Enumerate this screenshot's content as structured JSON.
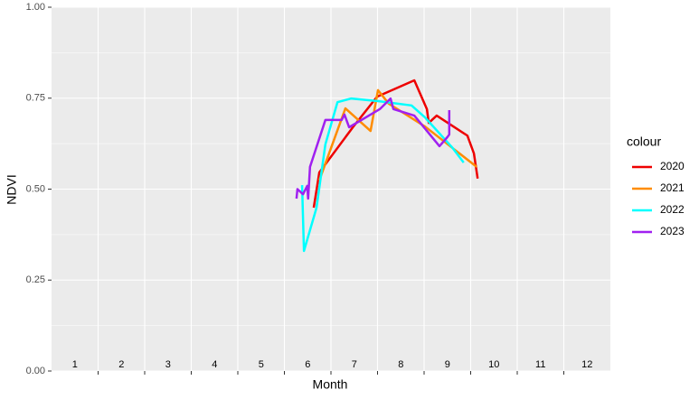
{
  "chart_data": {
    "type": "line",
    "x_label": "Month",
    "y_label": "NDVI",
    "xlim": [
      0.5,
      12.5
    ],
    "ylim": [
      0,
      1
    ],
    "xticks": [
      1,
      2,
      3,
      4,
      5,
      6,
      7,
      8,
      9,
      10,
      11,
      12
    ],
    "xgrid": [
      1.5,
      2.5,
      3.5,
      4.5,
      5.5,
      6.5,
      7.5,
      8.5,
      9.5,
      10.5,
      11.5
    ],
    "yticks": [
      {
        "value": 0,
        "label": "0.00"
      },
      {
        "value": 0.25,
        "label": "0.25"
      },
      {
        "value": 0.5,
        "label": "0.50"
      },
      {
        "value": 0.75,
        "label": "0.75"
      },
      {
        "value": 1,
        "label": "1.00"
      }
    ],
    "grid": true,
    "legend_title": "colour",
    "legend_position": "right",
    "series": [
      {
        "name": "2020",
        "color": "#ee0000",
        "x": [
          6.13,
          6.25,
          6.97,
          7.49,
          8.29,
          8.56,
          8.6,
          8.77,
          9.43,
          9.57,
          9.65
        ],
        "values": [
          0.449,
          0.546,
          0.67,
          0.754,
          0.799,
          0.72,
          0.682,
          0.702,
          0.647,
          0.598,
          0.529
        ]
      },
      {
        "name": "2021",
        "color": "#ff8c00",
        "x": [
          6.25,
          6.81,
          7.35,
          7.51,
          7.74,
          8.52,
          9.63
        ],
        "values": [
          0.524,
          0.722,
          0.66,
          0.772,
          0.735,
          0.672,
          0.561
        ]
      },
      {
        "name": "2022",
        "color": "#00ffff",
        "x": [
          5.88,
          5.92,
          6.19,
          6.38,
          6.64,
          6.93,
          7.51,
          8.23,
          8.52,
          9.1,
          9.35
        ],
        "values": [
          0.511,
          0.33,
          0.449,
          0.623,
          0.739,
          0.749,
          0.742,
          0.73,
          0.697,
          0.615,
          0.573
        ]
      },
      {
        "name": "2023",
        "color": "#a020f0",
        "x": [
          5.76,
          5.78,
          5.9,
          5.99,
          6.01,
          6.05,
          6.38,
          6.73,
          6.79,
          6.89,
          7.55,
          7.78,
          7.84,
          8.29,
          8.83,
          9.0,
          9.04,
          9.04
        ],
        "values": [
          0.474,
          0.5,
          0.486,
          0.509,
          0.474,
          0.561,
          0.69,
          0.69,
          0.705,
          0.67,
          0.72,
          0.749,
          0.72,
          0.702,
          0.618,
          0.643,
          0.65,
          0.717
        ]
      }
    ]
  }
}
